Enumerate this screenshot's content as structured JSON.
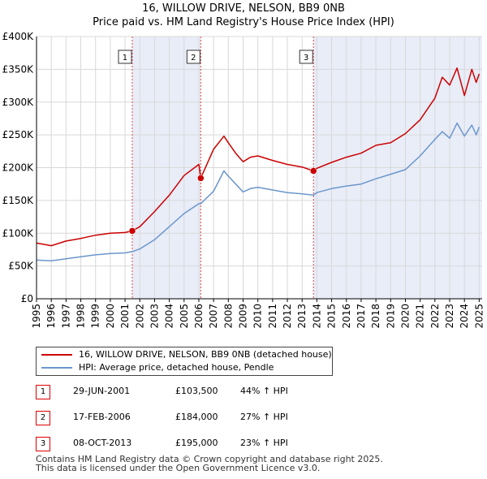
{
  "title": {
    "line1": "16, WILLOW DRIVE, NELSON, BB9 0NB",
    "line2": "Price paid vs. HM Land Registry's House Price Index (HPI)"
  },
  "chart_data": {
    "type": "line",
    "title": "16, WILLOW DRIVE, NELSON, BB9 0NB — Price paid vs. HM Land Registry's House Price Index (HPI)",
    "xlabel": "",
    "ylabel": "",
    "xlim": [
      1995,
      2025.2
    ],
    "ylim": [
      0,
      400000
    ],
    "x_ticks": [
      "1995",
      "1996",
      "1997",
      "1998",
      "1999",
      "2000",
      "2001",
      "2002",
      "2003",
      "2004",
      "2005",
      "2006",
      "2007",
      "2008",
      "2009",
      "2010",
      "2011",
      "2012",
      "2013",
      "2014",
      "2015",
      "2016",
      "2017",
      "2018",
      "2019",
      "2020",
      "2021",
      "2022",
      "2023",
      "2024",
      "2025"
    ],
    "y_ticks": [
      {
        "value": 0,
        "label": "£0"
      },
      {
        "value": 50000,
        "label": "£50K"
      },
      {
        "value": 100000,
        "label": "£100K"
      },
      {
        "value": 150000,
        "label": "£150K"
      },
      {
        "value": 200000,
        "label": "£200K"
      },
      {
        "value": 250000,
        "label": "£250K"
      },
      {
        "value": 300000,
        "label": "£300K"
      },
      {
        "value": 350000,
        "label": "£350K"
      },
      {
        "value": 400000,
        "label": "£400K"
      }
    ],
    "grid": true,
    "colors": {
      "property": "#cc0000",
      "hpi": "#6b96cc",
      "shade": "#e8edf8",
      "marker_line": "#dd4444"
    },
    "series": [
      {
        "name": "16, WILLOW DRIVE, NELSON, BB9 0NB (detached house)",
        "x": [
          1995.0,
          1996.0,
          1997.0,
          1998.0,
          1999.0,
          2000.0,
          2001.0,
          2001.49,
          2002.0,
          2003.0,
          2004.0,
          2005.0,
          2006.0,
          2006.13,
          2007.0,
          2007.7,
          2008.0,
          2008.5,
          2009.0,
          2009.5,
          2010.0,
          2011.0,
          2012.0,
          2013.0,
          2013.77,
          2014.0,
          2015.0,
          2016.0,
          2017.0,
          2018.0,
          2019.0,
          2020.0,
          2021.0,
          2022.0,
          2022.5,
          2023.0,
          2023.5,
          2024.0,
          2024.5,
          2024.8,
          2025.0
        ],
        "y": [
          85000,
          81000,
          88000,
          92000,
          97000,
          100000,
          101000,
          103500,
          110000,
          133000,
          158000,
          188000,
          205000,
          184000,
          228000,
          248000,
          238000,
          222000,
          209000,
          216000,
          218000,
          211000,
          205000,
          201000,
          195000,
          199000,
          208000,
          216000,
          222000,
          234000,
          238000,
          252000,
          273000,
          306000,
          338000,
          326000,
          352000,
          310000,
          350000,
          330000,
          343000
        ]
      },
      {
        "name": "HPI: Average price, detached house, Pendle",
        "x": [
          1995.0,
          1996.0,
          1997.0,
          1998.0,
          1999.0,
          2000.0,
          2001.0,
          2001.49,
          2002.0,
          2003.0,
          2004.0,
          2005.0,
          2006.0,
          2006.13,
          2007.0,
          2007.7,
          2008.0,
          2008.5,
          2009.0,
          2009.5,
          2010.0,
          2011.0,
          2012.0,
          2013.0,
          2013.77,
          2014.0,
          2015.0,
          2016.0,
          2017.0,
          2018.0,
          2019.0,
          2020.0,
          2021.0,
          2022.0,
          2022.5,
          2023.0,
          2023.5,
          2024.0,
          2024.5,
          2024.8,
          2025.0
        ],
        "y": [
          59000,
          58000,
          61000,
          64000,
          67000,
          69000,
          70000,
          72000,
          76000,
          90000,
          110000,
          130000,
          145000,
          145000,
          164000,
          195000,
          187000,
          175000,
          163000,
          168000,
          170000,
          166000,
          162000,
          160000,
          158000,
          162000,
          168000,
          172000,
          175000,
          183000,
          190000,
          197000,
          218000,
          243000,
          255000,
          245000,
          268000,
          248000,
          265000,
          250000,
          262000
        ]
      }
    ],
    "transactions": [
      {
        "label": "1",
        "x": 2001.49,
        "y": 103500
      },
      {
        "label": "2",
        "x": 2006.13,
        "y": 184000
      },
      {
        "label": "3",
        "x": 2013.77,
        "y": 195000
      }
    ],
    "shaded_ranges": [
      [
        2001.49,
        2006.13
      ],
      [
        2013.77,
        2025.2
      ]
    ]
  },
  "legend": {
    "property": "16, WILLOW DRIVE, NELSON, BB9 0NB (detached house)",
    "hpi": "HPI: Average price, detached house, Pendle"
  },
  "transactions_table": [
    {
      "num": "1",
      "date": "29-JUN-2001",
      "price": "£103,500",
      "hpi": "44% ↑ HPI"
    },
    {
      "num": "2",
      "date": "17-FEB-2006",
      "price": "£184,000",
      "hpi": "27% ↑ HPI"
    },
    {
      "num": "3",
      "date": "08-OCT-2013",
      "price": "£195,000",
      "hpi": "23% ↑ HPI"
    }
  ],
  "footer": {
    "line1": "Contains HM Land Registry data © Crown copyright and database right 2025.",
    "line2": "This data is licensed under the Open Government Licence v3.0."
  }
}
